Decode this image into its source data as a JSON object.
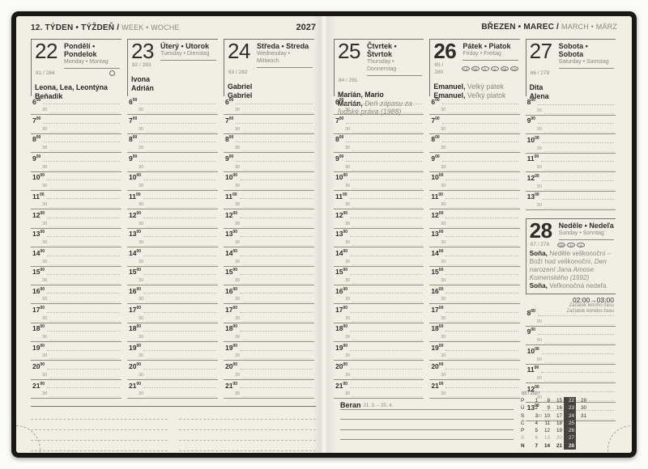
{
  "colors": {
    "page_bg": "#f1efe4",
    "cover": "#181817",
    "ink": "#2e2d28",
    "muted": "#8b887c",
    "rule_solid": "#93907f",
    "rule_dotted": "#b8b5a8",
    "week_highlight_bg": "#45443f"
  },
  "left_header": {
    "title": "12. TÝDEN • TÝŽDEŇ / ",
    "subtitle": "WEEK • WOCHE",
    "year": "2027"
  },
  "right_header": {
    "title": "BŘEZEN • MAREC / ",
    "subtitle": "MARCH • MÄRZ"
  },
  "schedule": {
    "sup": "00",
    "half_label": "30",
    "weekday_hours": [
      "6",
      "7",
      "8",
      "9",
      "10",
      "11",
      "12",
      "13",
      "14",
      "15",
      "16",
      "17",
      "18",
      "19",
      "20",
      "21"
    ],
    "halfday_hours": [
      "8",
      "9",
      "10",
      "11",
      "12",
      "13"
    ]
  },
  "days": {
    "mon": {
      "num": "22",
      "names_local": "Pondělí • Pondelok",
      "names_intl": "Monday • Montag",
      "ordinal": "81 / 284",
      "moon_icon": "full-moon",
      "nameday1": "Leona, Lea, Leontýna",
      "nameday2": "Beňadik"
    },
    "tue": {
      "num": "23",
      "names_local": "Úterý • Utorok",
      "names_intl": "Tuesday • Dienstag",
      "ordinal": "82 / 283",
      "nameday1": "Ivona",
      "nameday2": "Adrián"
    },
    "wed": {
      "num": "24",
      "names_local": "Středa • Streda",
      "names_intl": "Wednesday • Mittwoch",
      "ordinal": "83 / 282",
      "nameday1": "Gabriel",
      "nameday2": "Gabriel"
    },
    "thu": {
      "num": "25",
      "names_local": "Čtvrtek • Štvrtok",
      "names_intl": "Thursday • Donnerstag",
      "ordinal": "84 / 281",
      "nameday1": "Marián, Mario",
      "nameday2_bold": "Marián,",
      "nameday2_note": " Deň zápasu za ľudské práva (1988)"
    },
    "fri": {
      "num": "26",
      "names_local": "Pátek • Piatok",
      "names_intl": "Friday • Freitag",
      "ordinal": "85 / 280",
      "badges": [
        "CZ",
        "SK",
        "D",
        "A",
        "GB",
        "CH"
      ],
      "nameday1_bold": "Emanuel,",
      "nameday1_rest": " Velký pátek",
      "nameday2_bold": "Emanuel,",
      "nameday2_rest": " Veľký piatok"
    },
    "sat": {
      "num": "27",
      "names_local": "Sobota • Sobota",
      "names_intl": "Saturday • Samstag",
      "ordinal": "86 / 279",
      "nameday1": "Dita",
      "nameday2": "Alena"
    },
    "sun": {
      "num": "28",
      "names_local": "Neděle • Nedeľa",
      "names_intl": "Sunday • Sonntag",
      "ordinal": "87 / 278",
      "badges": [
        "GB",
        "D",
        "A"
      ],
      "line1_bold": "Soňa,",
      "line1_rest": " Neděle velikonoční – Boží hod velikonoční, ",
      "line1_note": "Den narození Jana Amose Komenského (1592)",
      "line2_bold": "Soňa,",
      "line2_rest": " Veľkonočná nedeľa"
    }
  },
  "dst": {
    "time": "02:00→03:00",
    "label_cz": "Začátek letního času",
    "label_sk": "Začiatok letného času"
  },
  "zodiac": {
    "name": "Beran",
    "range": "21. 3. – 20. 4."
  },
  "minical": {
    "header": "03 / 2027",
    "cells": [
      {
        "t": "P",
        "c": "lab"
      },
      {
        "t": "1"
      },
      {
        "t": "8"
      },
      {
        "t": "15"
      },
      {
        "t": "22",
        "c": "hl"
      },
      {
        "t": "29"
      },
      {
        "t": "Ú",
        "c": "lab"
      },
      {
        "t": "2"
      },
      {
        "t": "9"
      },
      {
        "t": "16"
      },
      {
        "t": "23",
        "c": "hl"
      },
      {
        "t": "30"
      },
      {
        "t": "S",
        "c": "lab"
      },
      {
        "t": "3"
      },
      {
        "t": "10"
      },
      {
        "t": "17"
      },
      {
        "t": "24",
        "c": "hl"
      },
      {
        "t": "31"
      },
      {
        "t": "Č",
        "c": "lab"
      },
      {
        "t": "4"
      },
      {
        "t": "11"
      },
      {
        "t": "18"
      },
      {
        "t": "25",
        "c": "hl"
      },
      {
        "t": ""
      },
      {
        "t": "P",
        "c": "lab"
      },
      {
        "t": "5"
      },
      {
        "t": "12"
      },
      {
        "t": "19"
      },
      {
        "t": "26",
        "c": "hl"
      },
      {
        "t": ""
      },
      {
        "t": "S",
        "c": "lab sat"
      },
      {
        "t": "6",
        "c": "sat"
      },
      {
        "t": "13",
        "c": "sat"
      },
      {
        "t": "20",
        "c": "sat"
      },
      {
        "t": "27",
        "c": "hl sat"
      },
      {
        "t": ""
      },
      {
        "t": "N",
        "c": "lab sun"
      },
      {
        "t": "7",
        "c": "sun"
      },
      {
        "t": "14",
        "c": "sun"
      },
      {
        "t": "21",
        "c": "sun"
      },
      {
        "t": "28",
        "c": "hl sun"
      },
      {
        "t": ""
      }
    ]
  }
}
